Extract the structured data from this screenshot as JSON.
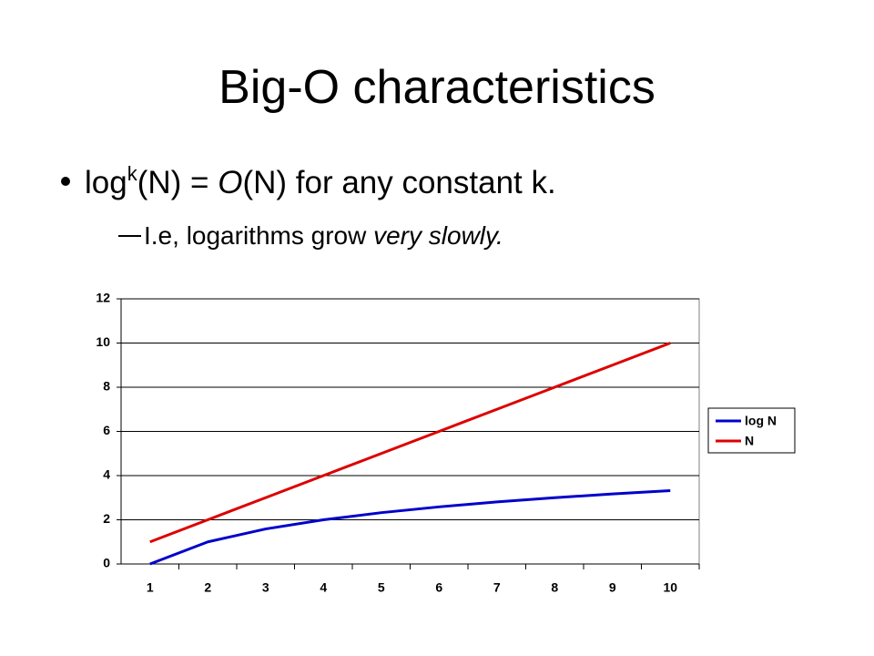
{
  "slide": {
    "title": "Big-O characteristics",
    "bullet": {
      "parts": [
        "log",
        "k",
        "(N) = ",
        "O",
        "(N) for any constant k."
      ]
    },
    "sub_bullet": {
      "parts": [
        "I.e, logarithms grow ",
        "very slowly."
      ]
    }
  },
  "chart_data": {
    "type": "line",
    "categories": [
      "1",
      "2",
      "3",
      "4",
      "5",
      "6",
      "7",
      "8",
      "9",
      "10"
    ],
    "series": [
      {
        "name": "log N",
        "color": "#0000cc",
        "values": [
          0,
          1,
          1.585,
          2,
          2.322,
          2.585,
          2.807,
          3,
          3.17,
          3.322
        ]
      },
      {
        "name": "N",
        "color": "#dd0000",
        "values": [
          1,
          2,
          3,
          4,
          5,
          6,
          7,
          8,
          9,
          10
        ]
      }
    ],
    "ylim": [
      0,
      12
    ],
    "yticks": [
      0,
      2,
      4,
      6,
      8,
      10,
      12
    ],
    "grid": true,
    "legend": "right"
  }
}
